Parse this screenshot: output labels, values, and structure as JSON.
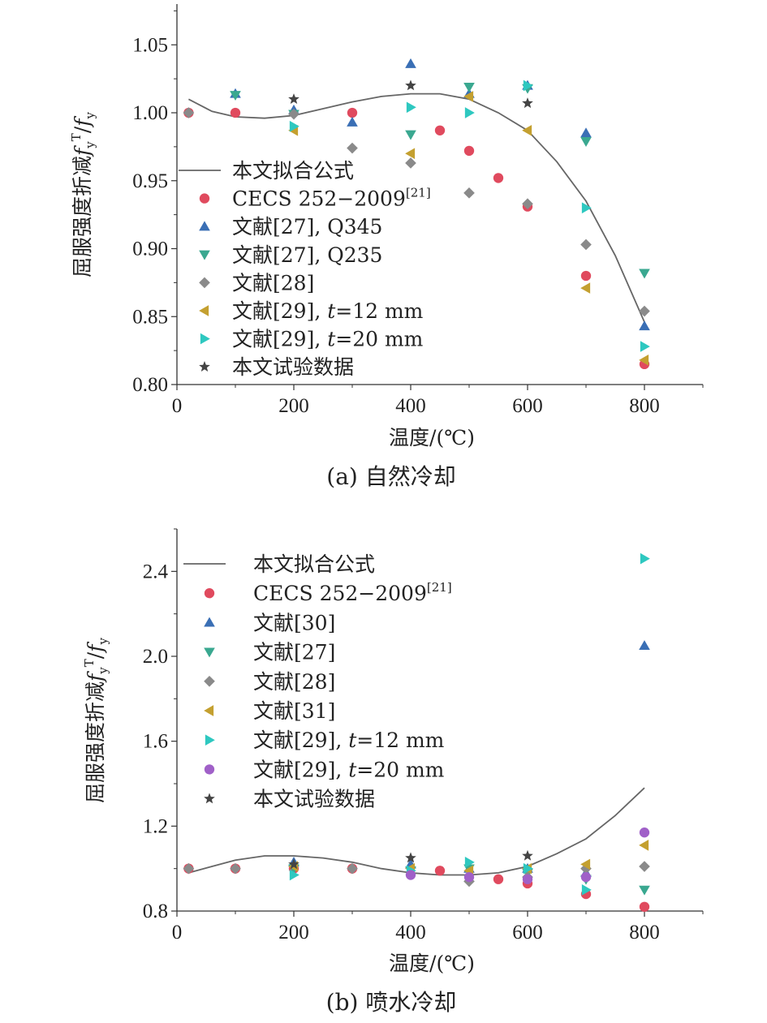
{
  "chart_data": [
    {
      "type": "scatter",
      "caption": "(a) 自然冷却",
      "xlabel": "温度/(℃)",
      "ylabel_main": "屈服强度折减",
      "ylabel_formula": "f^T_y/f_y",
      "xlim": [
        0,
        900
      ],
      "ylim": [
        0.8,
        1.08
      ],
      "xticks": [
        0,
        200,
        400,
        600,
        800
      ],
      "xtick_labels": [
        "0",
        "200",
        "400",
        "600",
        "800"
      ],
      "yticks": [
        0.8,
        0.85,
        0.9,
        0.95,
        1.0,
        1.05
      ],
      "ytick_labels": [
        "0.80",
        "0.85",
        "0.90",
        "0.95",
        "1.00",
        "1.05"
      ],
      "legend_position": "left",
      "fit": {
        "name": "本文拟合公式",
        "color": "#666666",
        "x": [
          20,
          60,
          100,
          150,
          200,
          250,
          300,
          350,
          400,
          450,
          500,
          550,
          600,
          650,
          700,
          750,
          800
        ],
        "y": [
          1.01,
          1.001,
          0.997,
          0.996,
          0.998,
          1.003,
          1.008,
          1.012,
          1.014,
          1.014,
          1.01,
          1.0,
          0.987,
          0.964,
          0.935,
          0.895,
          0.846
        ]
      },
      "series": [
        {
          "name": "CECS 252−2009",
          "sup": "[21]",
          "marker": "circle",
          "color": "#e04a5e",
          "x": [
            20,
            100,
            300,
            450,
            500,
            550,
            600,
            700,
            800
          ],
          "y": [
            1.0,
            1.0,
            1.0,
            0.987,
            0.972,
            0.952,
            0.931,
            0.88,
            0.815
          ]
        },
        {
          "name": "文献[27], Q345",
          "marker": "triangle-up",
          "color": "#3a6fb5",
          "x": [
            100,
            200,
            300,
            400,
            500,
            600,
            700,
            800
          ],
          "y": [
            1.014,
            1.002,
            0.993,
            1.036,
            1.014,
            1.02,
            0.985,
            0.843
          ]
        },
        {
          "name": "文献[27], Q235",
          "marker": "triangle-down",
          "color": "#3aa890",
          "x": [
            100,
            200,
            400,
            500,
            600,
            700,
            800
          ],
          "y": [
            1.013,
            0.999,
            0.984,
            1.019,
            1.018,
            0.979,
            0.882
          ]
        },
        {
          "name": "文献[28]",
          "marker": "diamond",
          "color": "#8a8a8a",
          "x": [
            20,
            200,
            300,
            400,
            500,
            600,
            700,
            800
          ],
          "y": [
            1.0,
            0.999,
            0.974,
            0.963,
            0.941,
            0.933,
            0.903,
            0.854
          ]
        },
        {
          "name": "文献[29], t=12 mm",
          "marker": "triangle-left",
          "color": "#c4a030",
          "x": [
            200,
            400,
            500,
            600,
            700,
            800
          ],
          "y": [
            0.987,
            0.97,
            1.012,
            0.987,
            0.871,
            0.818
          ]
        },
        {
          "name": "文献[29], t=20 mm",
          "marker": "triangle-right",
          "color": "#2ec8c0",
          "x": [
            200,
            400,
            500,
            600,
            700,
            800
          ],
          "y": [
            0.99,
            1.004,
            1.0,
            1.02,
            0.93,
            0.828
          ]
        },
        {
          "name": "本文试验数据",
          "marker": "star",
          "color": "#444444",
          "x": [
            200,
            400,
            600
          ],
          "y": [
            1.01,
            1.02,
            1.007
          ]
        }
      ],
      "legend_items": [
        {
          "label": "本文拟合公式",
          "marker": "line",
          "color": "#666666"
        },
        {
          "label": "CECS 252−2009",
          "sup": "[21]",
          "marker": "circle",
          "color": "#e04a5e"
        },
        {
          "label": "文献[27], Q345",
          "marker": "triangle-up",
          "color": "#3a6fb5"
        },
        {
          "label": "文献[27], Q235",
          "marker": "triangle-down",
          "color": "#3aa890"
        },
        {
          "label": "文献[28]",
          "marker": "diamond",
          "color": "#8a8a8a"
        },
        {
          "label": "文献[29], t=12 mm",
          "marker": "triangle-left",
          "color": "#c4a030"
        },
        {
          "label": "文献[29], t=20 mm",
          "marker": "triangle-right",
          "color": "#2ec8c0"
        },
        {
          "label": "本文试验数据",
          "marker": "star",
          "color": "#444444"
        }
      ]
    },
    {
      "type": "scatter",
      "caption": "(b) 喷水冷却",
      "xlabel": "温度/(℃)",
      "ylabel_main": "屈服强度折减",
      "ylabel_formula": "f^T_y/f_y",
      "xlim": [
        0,
        900
      ],
      "ylim": [
        0.8,
        2.6
      ],
      "xticks": [
        0,
        200,
        400,
        600,
        800
      ],
      "xtick_labels": [
        "0",
        "200",
        "400",
        "600",
        "800"
      ],
      "yticks": [
        0.8,
        1.2,
        1.6,
        2.0,
        2.4
      ],
      "ytick_labels": [
        "0.8",
        "1.2",
        "1.6",
        "2.0",
        "2.4"
      ],
      "legend_position": "top-left",
      "fit": {
        "name": "本文拟合公式",
        "color": "#666666",
        "x": [
          20,
          60,
          100,
          150,
          200,
          250,
          300,
          350,
          400,
          450,
          500,
          550,
          600,
          650,
          700,
          750,
          800
        ],
        "y": [
          0.98,
          1.01,
          1.04,
          1.06,
          1.06,
          1.05,
          1.03,
          1.0,
          0.98,
          0.97,
          0.97,
          0.98,
          1.01,
          1.07,
          1.14,
          1.25,
          1.38
        ]
      },
      "series": [
        {
          "name": "CECS 252−2009",
          "sup": "[21]",
          "marker": "circle",
          "color": "#e04a5e",
          "x": [
            20,
            100,
            200,
            300,
            450,
            550,
            600,
            700,
            800
          ],
          "y": [
            1.0,
            1.0,
            1.0,
            1.0,
            0.99,
            0.95,
            0.93,
            0.88,
            0.82
          ]
        },
        {
          "name": "文献[30]",
          "marker": "triangle-up",
          "color": "#3a6fb5",
          "x": [
            200,
            400,
            500,
            600,
            700,
            800
          ],
          "y": [
            1.03,
            1.02,
            1.0,
            1.0,
            0.98,
            2.05
          ]
        },
        {
          "name": "文献[27]",
          "marker": "triangle-down",
          "color": "#3aa890",
          "x": [
            200,
            400,
            500,
            600,
            700,
            800
          ],
          "y": [
            1.0,
            0.99,
            1.0,
            0.98,
            0.95,
            0.9
          ]
        },
        {
          "name": "文献[28]",
          "marker": "diamond",
          "color": "#8a8a8a",
          "x": [
            20,
            100,
            300,
            500,
            600,
            700,
            800
          ],
          "y": [
            1.0,
            1.0,
            1.0,
            0.94,
            0.96,
            1.0,
            1.01
          ]
        },
        {
          "name": "文献[31]",
          "marker": "triangle-left",
          "color": "#c4a030",
          "x": [
            200,
            400,
            500,
            600,
            700,
            800
          ],
          "y": [
            1.01,
            1.0,
            0.99,
            1.0,
            1.02,
            1.11
          ]
        },
        {
          "name": "文献[29], t=12 mm",
          "marker": "triangle-right",
          "color": "#2ec8c0",
          "x": [
            200,
            400,
            500,
            600,
            700,
            800
          ],
          "y": [
            0.97,
            0.99,
            1.03,
            1.0,
            0.9,
            2.46
          ]
        },
        {
          "name": "文献[29], t=20 mm",
          "marker": "circle",
          "color": "#a060c8",
          "x": [
            400,
            500,
            600,
            700,
            800
          ],
          "y": [
            0.97,
            0.96,
            0.95,
            0.96,
            1.17
          ]
        },
        {
          "name": "本文试验数据",
          "marker": "star",
          "color": "#444444",
          "x": [
            200,
            400,
            600
          ],
          "y": [
            1.02,
            1.05,
            1.06
          ]
        }
      ],
      "legend_items": [
        {
          "label": "本文拟合公式",
          "marker": "line",
          "color": "#666666"
        },
        {
          "label": "CECS 252−2009",
          "sup": "[21]",
          "marker": "circle",
          "color": "#e04a5e"
        },
        {
          "label": "文献[30]",
          "marker": "triangle-up",
          "color": "#3a6fb5"
        },
        {
          "label": "文献[27]",
          "marker": "triangle-down",
          "color": "#3aa890"
        },
        {
          "label": "文献[28]",
          "marker": "diamond",
          "color": "#8a8a8a"
        },
        {
          "label": "文献[31]",
          "marker": "triangle-left",
          "color": "#c4a030"
        },
        {
          "label": "文献[29], t=12 mm",
          "marker": "triangle-right",
          "color": "#2ec8c0"
        },
        {
          "label": "文献[29], t=20 mm",
          "marker": "circle",
          "color": "#a060c8"
        },
        {
          "label": "本文试验数据",
          "marker": "star",
          "color": "#444444"
        }
      ]
    }
  ]
}
